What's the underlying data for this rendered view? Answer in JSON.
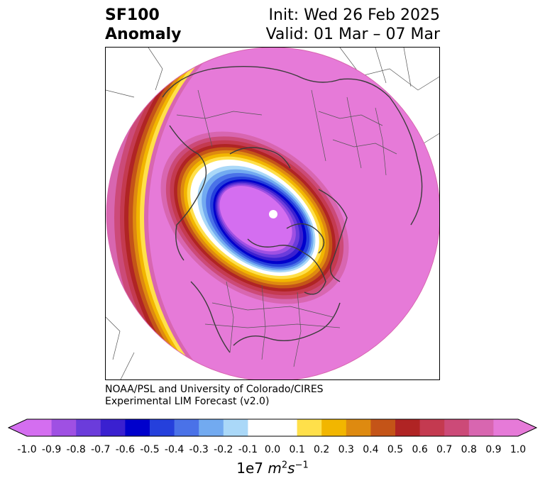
{
  "title": {
    "variable": "SF100",
    "kind": "Anomaly",
    "init": "Init: Wed 26 Feb 2025",
    "valid": "Valid: 01 Mar – 07 Mar"
  },
  "credit": {
    "line1": "NOAA/PSL and University of Colorado/CIRES",
    "line2": "Experimental LIM Forecast (v2.0)"
  },
  "colorbar": {
    "scale_text": "1e7",
    "units_base": "m",
    "units_exp1": "2",
    "units_mid": "s",
    "units_exp2": "−1",
    "ticks": [
      "-1.0",
      "-0.9",
      "-0.8",
      "-0.7",
      "-0.6",
      "-0.5",
      "-0.4",
      "-0.3",
      "-0.2",
      "-0.1",
      "0.0",
      "0.1",
      "0.2",
      "0.3",
      "0.4",
      "0.5",
      "0.6",
      "0.7",
      "0.8",
      "0.9",
      "1.0"
    ],
    "colors": [
      "#d46ef0",
      "#9f50e3",
      "#6b3cdb",
      "#3a20d0",
      "#0000cc",
      "#2540dc",
      "#4a72e8",
      "#72aaf0",
      "#aad8f8",
      "#ffffff",
      "#ffffff",
      "#ffe04a",
      "#f2b600",
      "#de8a10",
      "#c45418",
      "#b02424",
      "#c43a50",
      "#cc4a78",
      "#d866b0",
      "#e67ad8"
    ],
    "extend_min_color": "#d46ef0",
    "extend_max_color": "#e67ad8"
  },
  "map": {
    "projection": "north-polar-stereographic",
    "background_anomaly_color": "#e67ad8",
    "center_marker_color": "#ffffff"
  }
}
